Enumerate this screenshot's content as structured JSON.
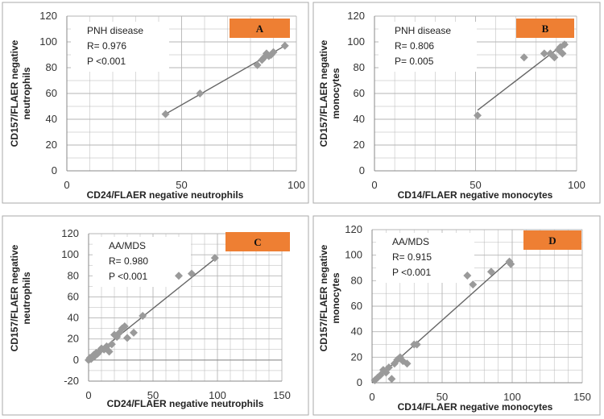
{
  "colors": {
    "marker": "#9a9a9a",
    "fit_line": "#666666",
    "grid": "#b5b5b5",
    "label_box": "#ee7f33",
    "panel_border": "#aaaaaa"
  },
  "chart_data": [
    {
      "type": "scatter",
      "panel_label": "A",
      "annotation": [
        "PNH disease",
        "R= 0.976",
        "P <0.001"
      ],
      "xlabel": "CD24/FLAER negative neutrophils",
      "ylabel": [
        "CD157/FLAER negative",
        "neutrophils"
      ],
      "xlim": [
        0,
        100
      ],
      "ylim": [
        0,
        120
      ],
      "xticks": [
        0,
        50,
        100
      ],
      "yticks": [
        0,
        20,
        40,
        60,
        80,
        100,
        120
      ],
      "grid": true,
      "points": [
        [
          43,
          44
        ],
        [
          58,
          60
        ],
        [
          83,
          82
        ],
        [
          85,
          86
        ],
        [
          86,
          88
        ],
        [
          87,
          91
        ],
        [
          88,
          89
        ],
        [
          89,
          90
        ],
        [
          90,
          92
        ],
        [
          95,
          97
        ]
      ],
      "fit": [
        [
          42,
          43
        ],
        [
          95,
          97
        ]
      ]
    },
    {
      "type": "scatter",
      "panel_label": "B",
      "annotation": [
        "PNH disease",
        "R= 0.806",
        "P= 0.005"
      ],
      "xlabel": "CD14/FLAER negative monocytes",
      "ylabel": [
        "CD157/FLAER negative",
        "monocytes"
      ],
      "xlim": [
        0,
        100
      ],
      "ylim": [
        0,
        120
      ],
      "xticks": [
        0,
        50,
        100
      ],
      "yticks": [
        0,
        20,
        40,
        60,
        80,
        100,
        120
      ],
      "grid": true,
      "points": [
        [
          51,
          43
        ],
        [
          74,
          88
        ],
        [
          84,
          91
        ],
        [
          87,
          91
        ],
        [
          89,
          88
        ],
        [
          91,
          94
        ],
        [
          92,
          96
        ],
        [
          93,
          91
        ],
        [
          94,
          98
        ]
      ],
      "fit": [
        [
          51,
          47
        ],
        [
          95,
          100
        ]
      ]
    },
    {
      "type": "scatter",
      "panel_label": "C",
      "annotation": [
        "AA/MDS",
        "R= 0.980",
        "P <0.001"
      ],
      "xlabel": "CD24/FLAER negative neutrophils",
      "ylabel": [
        "CD157/FLAER negative",
        "neutrophils"
      ],
      "xlim": [
        0,
        150
      ],
      "ylim": [
        -20,
        120
      ],
      "xticks": [
        0,
        50,
        100,
        150
      ],
      "yticks": [
        -20,
        0,
        20,
        40,
        60,
        80,
        100,
        120
      ],
      "grid": true,
      "points": [
        [
          0,
          0
        ],
        [
          1,
          2
        ],
        [
          2,
          1
        ],
        [
          3,
          3
        ],
        [
          4,
          5
        ],
        [
          5,
          4
        ],
        [
          6,
          7
        ],
        [
          7,
          6
        ],
        [
          8,
          8
        ],
        [
          9,
          9
        ],
        [
          10,
          11
        ],
        [
          12,
          10
        ],
        [
          14,
          13
        ],
        [
          16,
          8
        ],
        [
          18,
          15
        ],
        [
          20,
          24
        ],
        [
          22,
          22
        ],
        [
          24,
          26
        ],
        [
          26,
          30
        ],
        [
          28,
          32
        ],
        [
          30,
          21
        ],
        [
          35,
          26
        ],
        [
          42,
          42
        ],
        [
          70,
          80
        ],
        [
          80,
          82
        ],
        [
          98,
          97
        ]
      ],
      "fit": [
        [
          0,
          0
        ],
        [
          100,
          98
        ]
      ]
    },
    {
      "type": "scatter",
      "panel_label": "D",
      "annotation": [
        "AA/MDS",
        "R= 0.915",
        "P <0.001"
      ],
      "xlabel": "CD14/FLAER negative monocytes",
      "ylabel": [
        "CD157/FLAER negative",
        "monocytes"
      ],
      "xlim": [
        0,
        150
      ],
      "ylim": [
        0,
        120
      ],
      "xticks": [
        0,
        50,
        100,
        150
      ],
      "yticks": [
        0,
        20,
        40,
        60,
        80,
        100,
        120
      ],
      "grid": true,
      "points": [
        [
          2,
          2
        ],
        [
          4,
          4
        ],
        [
          6,
          6
        ],
        [
          8,
          10
        ],
        [
          10,
          8
        ],
        [
          12,
          12
        ],
        [
          14,
          3
        ],
        [
          16,
          15
        ],
        [
          18,
          18
        ],
        [
          20,
          20
        ],
        [
          22,
          17
        ],
        [
          25,
          15
        ],
        [
          30,
          30
        ],
        [
          32,
          30
        ],
        [
          68,
          84
        ],
        [
          72,
          77
        ],
        [
          85,
          87
        ],
        [
          98,
          95
        ],
        [
          99,
          93
        ]
      ],
      "fit": [
        [
          0,
          0
        ],
        [
          98,
          96
        ]
      ]
    }
  ]
}
